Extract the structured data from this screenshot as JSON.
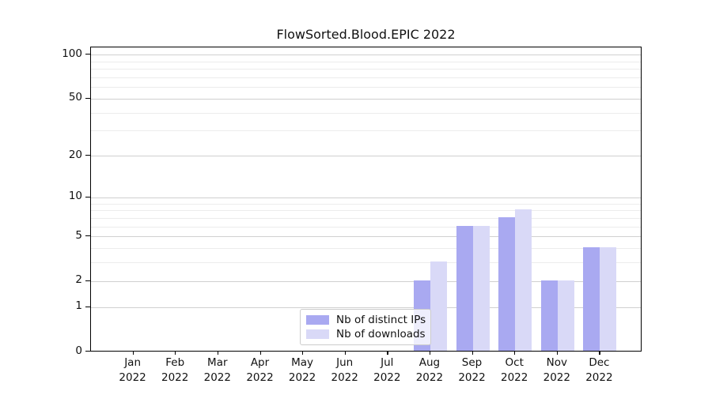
{
  "title": "FlowSorted.Blood.EPIC 2022",
  "chart_data": {
    "type": "bar",
    "title": "FlowSorted.Blood.EPIC 2022",
    "categories": [
      "Jan",
      "Feb",
      "Mar",
      "Apr",
      "May",
      "Jun",
      "Jul",
      "Aug",
      "Sep",
      "Oct",
      "Nov",
      "Dec"
    ],
    "year": "2022",
    "series": [
      {
        "name": "Nb of distinct IPs",
        "color": "#a9a9f1",
        "values": [
          0,
          0,
          0,
          0,
          0,
          0,
          0,
          2,
          6,
          7,
          2,
          4
        ]
      },
      {
        "name": "Nb of downloads",
        "color": "#d9d9f7",
        "values": [
          0,
          0,
          0,
          0,
          0,
          0,
          0,
          3,
          6,
          8,
          2,
          4
        ]
      }
    ],
    "xlabel": "",
    "ylabel": "",
    "y_axis": {
      "scale": "log1p",
      "major_ticks": [
        0,
        1,
        2,
        5,
        10,
        20,
        50,
        100
      ],
      "minor_ticks": [
        3,
        4,
        6,
        7,
        8,
        9,
        30,
        40,
        60,
        70,
        80,
        90
      ],
      "ymax": 112
    },
    "grid": true,
    "legend_position": "lower center"
  },
  "colors": {
    "bar_ips": "#a9a9f1",
    "bar_downloads": "#d9d9f7",
    "grid_major": "#d0d0d0",
    "grid_minor": "#ececec",
    "axis": "#000000",
    "legend_border": "#cccccc"
  }
}
